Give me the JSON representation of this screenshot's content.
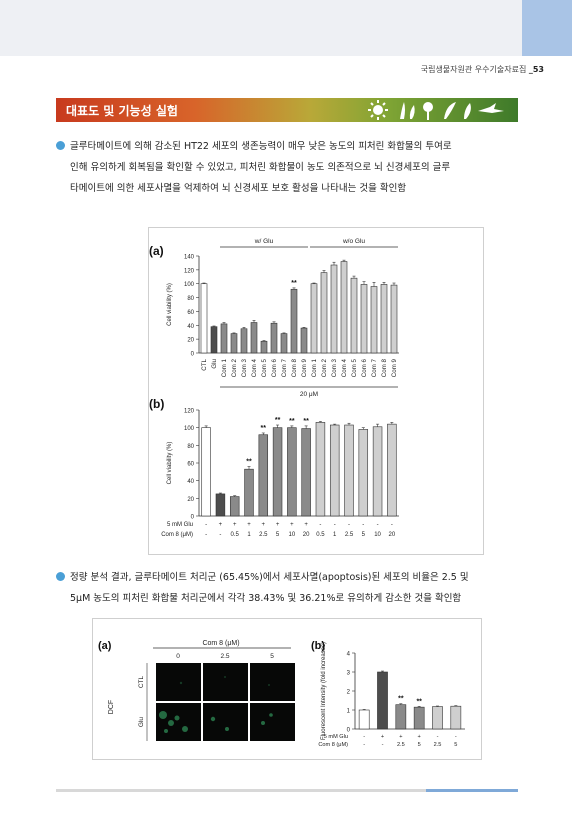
{
  "header": {
    "source": "국립생물자원관 우수기술자료집",
    "page": "_53"
  },
  "section": {
    "title": "대표도 및 기능성 실험"
  },
  "bullets": [
    {
      "lines": [
        "글루타메이트에 의해 감소된 HT22 세포의 생존능력이 매우 낮은 농도의 피처린 화합물의 투여로",
        "인해 유의하게 회복됨을 확인할 수 있었고, 피처린 화합물이 농도 의존적으로 뇌 신경세포의 글루",
        "타메이트에 의한 세포사멸을 억제하여 뇌 신경세포 보호 활성을 나타내는 것을 확인함"
      ]
    },
    {
      "lines": [
        "정량 분석 결과, 글루타메이트 처리군 (65.45%)에서 세포사멸(apoptosis)된 세포의 비율은 2.5 및",
        "5μM 농도의 피처린 화합물 처리군에서 각각 38.43% 및 36.21%로 유의하게 감소한 것을 확인함"
      ]
    }
  ],
  "chart_data": [
    {
      "type": "bar",
      "panel": "(a)",
      "group_labels": [
        "w/ Glu",
        "w/o Glu"
      ],
      "note": "20 μM",
      "ylabel": "Cell viability (%)",
      "ylim": [
        0,
        140
      ],
      "yticks": [
        0,
        20,
        40,
        60,
        80,
        100,
        120,
        140
      ],
      "categories": [
        "CTL",
        "Glu",
        "Com 1",
        "Com 2",
        "Com 3",
        "Com 4",
        "Com 5",
        "Com 6",
        "Com 7",
        "Com 8",
        "Com 9",
        "Com 1",
        "Com 2",
        "Com 3",
        "Com 4",
        "Com 5",
        "Com 6",
        "Com 7",
        "Com 8",
        "Com 9"
      ],
      "values": [
        100,
        38,
        42,
        28,
        35,
        44,
        17,
        43,
        28,
        92,
        36,
        100,
        116,
        127,
        132,
        108,
        99,
        96,
        99,
        98
      ],
      "errors": [
        1,
        1,
        2,
        1,
        2,
        3,
        1,
        2,
        1,
        2,
        1,
        1,
        3,
        4,
        2,
        3,
        4,
        6,
        3,
        3
      ],
      "colors": [
        "#ffffff",
        "#4d4d4d",
        "#8a8a8a",
        "#8a8a8a",
        "#8a8a8a",
        "#8a8a8a",
        "#8a8a8a",
        "#8a8a8a",
        "#8a8a8a",
        "#8a8a8a",
        "#8a8a8a",
        "#cfcfcf",
        "#cfcfcf",
        "#cfcfcf",
        "#cfcfcf",
        "#cfcfcf",
        "#cfcfcf",
        "#cfcfcf",
        "#cfcfcf",
        "#cfcfcf"
      ],
      "annotations": [
        {
          "index": 9,
          "text": "**"
        }
      ]
    },
    {
      "type": "bar",
      "panel": "(b)",
      "ylabel": "Cell viability (%)",
      "ylim": [
        0,
        120
      ],
      "yticks": [
        0,
        20,
        40,
        60,
        80,
        100,
        120
      ],
      "rows": [
        {
          "label": "5 mM Glu",
          "values": [
            "-",
            "+",
            "+",
            "+",
            "+",
            "+",
            "+",
            "+",
            "-",
            "-",
            "-",
            "-",
            "-",
            "-"
          ]
        },
        {
          "label": "Com 8 (μM)",
          "values": [
            "-",
            "-",
            "0.5",
            "1",
            "2.5",
            "5",
            "10",
            "20",
            "0.5",
            "1",
            "2.5",
            "5",
            "10",
            "20"
          ]
        }
      ],
      "values": [
        100,
        25,
        22,
        53,
        92,
        100,
        100,
        99,
        106,
        103,
        103,
        98,
        101,
        104
      ],
      "errors": [
        2,
        1,
        1,
        3,
        2,
        3,
        2,
        3,
        1,
        1,
        2,
        2,
        3,
        2
      ],
      "colors": [
        "#ffffff",
        "#4d4d4d",
        "#8a8a8a",
        "#8a8a8a",
        "#8a8a8a",
        "#8a8a8a",
        "#8a8a8a",
        "#8a8a8a",
        "#cfcfcf",
        "#cfcfcf",
        "#cfcfcf",
        "#cfcfcf",
        "#cfcfcf",
        "#cfcfcf"
      ],
      "annotations": [
        {
          "index": 3,
          "text": "**"
        },
        {
          "index": 4,
          "text": "**"
        },
        {
          "index": 5,
          "text": "**"
        },
        {
          "index": 6,
          "text": "**"
        },
        {
          "index": 7,
          "text": "**"
        }
      ]
    },
    {
      "type": "bar",
      "panel": "(b)",
      "ylabel": "Fluorescent Intensity (fold increases)",
      "ylim": [
        0,
        4
      ],
      "yticks": [
        0,
        1,
        2,
        3,
        4
      ],
      "rows": [
        {
          "label": "5 mM Glu",
          "values": [
            "-",
            "+",
            "+",
            "+",
            "-",
            "-"
          ]
        },
        {
          "label": "Com 8 (μM)",
          "values": [
            "-",
            "-",
            "2.5",
            "5",
            "2.5",
            "5"
          ]
        }
      ],
      "values": [
        1.0,
        3.0,
        1.28,
        1.15,
        1.18,
        1.2
      ],
      "errors": [
        0.03,
        0.05,
        0.05,
        0.04,
        0.03,
        0.03
      ],
      "colors": [
        "#ffffff",
        "#4d4d4d",
        "#8a8a8a",
        "#8a8a8a",
        "#cfcfcf",
        "#cfcfcf"
      ],
      "annotations": [
        {
          "index": 2,
          "text": "**"
        },
        {
          "index": 3,
          "text": "**"
        }
      ]
    }
  ],
  "micrograph": {
    "panel": "(a)",
    "title": "Com 8 (μM)",
    "columns": [
      "0",
      "2.5",
      "5"
    ],
    "rows": [
      "CTL",
      "Glu"
    ],
    "side_label": "DCF"
  }
}
